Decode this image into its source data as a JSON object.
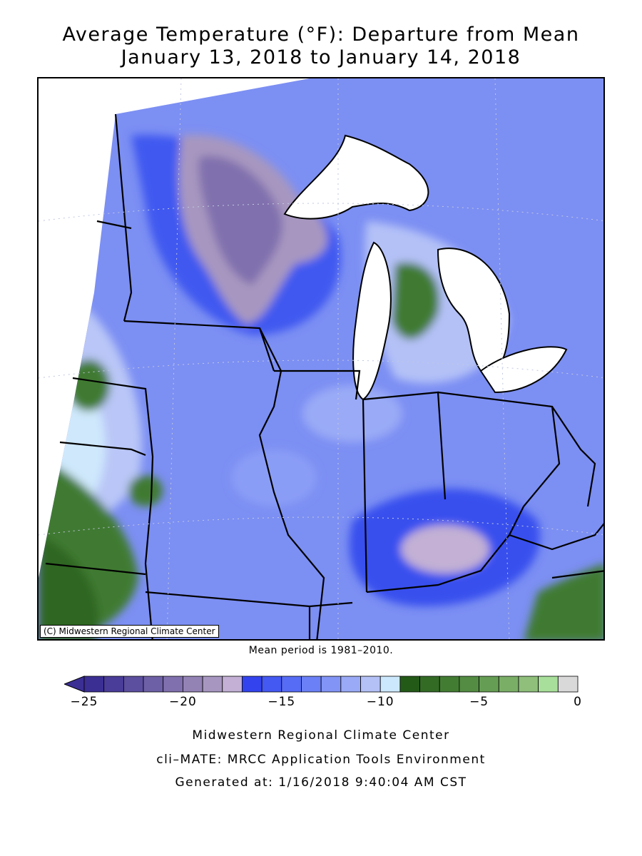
{
  "title": {
    "line1": "Average Temperature (°F): Departure from Mean",
    "line2": "January 13, 2018 to January 14, 2018"
  },
  "map": {
    "copyright": "(C) Midwestern Regional Climate Center",
    "mean_period": "Mean period is 1981–2010."
  },
  "legend": {
    "colors": [
      "#3b2f94",
      "#4a3d99",
      "#5c4f9f",
      "#6e60a6",
      "#8070ad",
      "#9383b5",
      "#a797c0",
      "#c3b0d4",
      "#3344ee",
      "#4458f2",
      "#566cf5",
      "#6b80f6",
      "#8294f5",
      "#9aaaf6",
      "#b4c1f7",
      "#cce8fc",
      "#245a18",
      "#336b25",
      "#427c33",
      "#538c42",
      "#669d54",
      "#7aae67",
      "#8fbf7b",
      "#a8df9a",
      "#d9d9d9"
    ],
    "tick_labels": [
      "−25",
      "−20",
      "−15",
      "−10",
      "−5",
      "0"
    ]
  },
  "footer": {
    "line1": "Midwestern Regional Climate Center",
    "line2": "cli–MATE: MRCC Application Tools Environment",
    "line3": "Generated at: 1/16/2018 9:40:04 AM CST"
  }
}
